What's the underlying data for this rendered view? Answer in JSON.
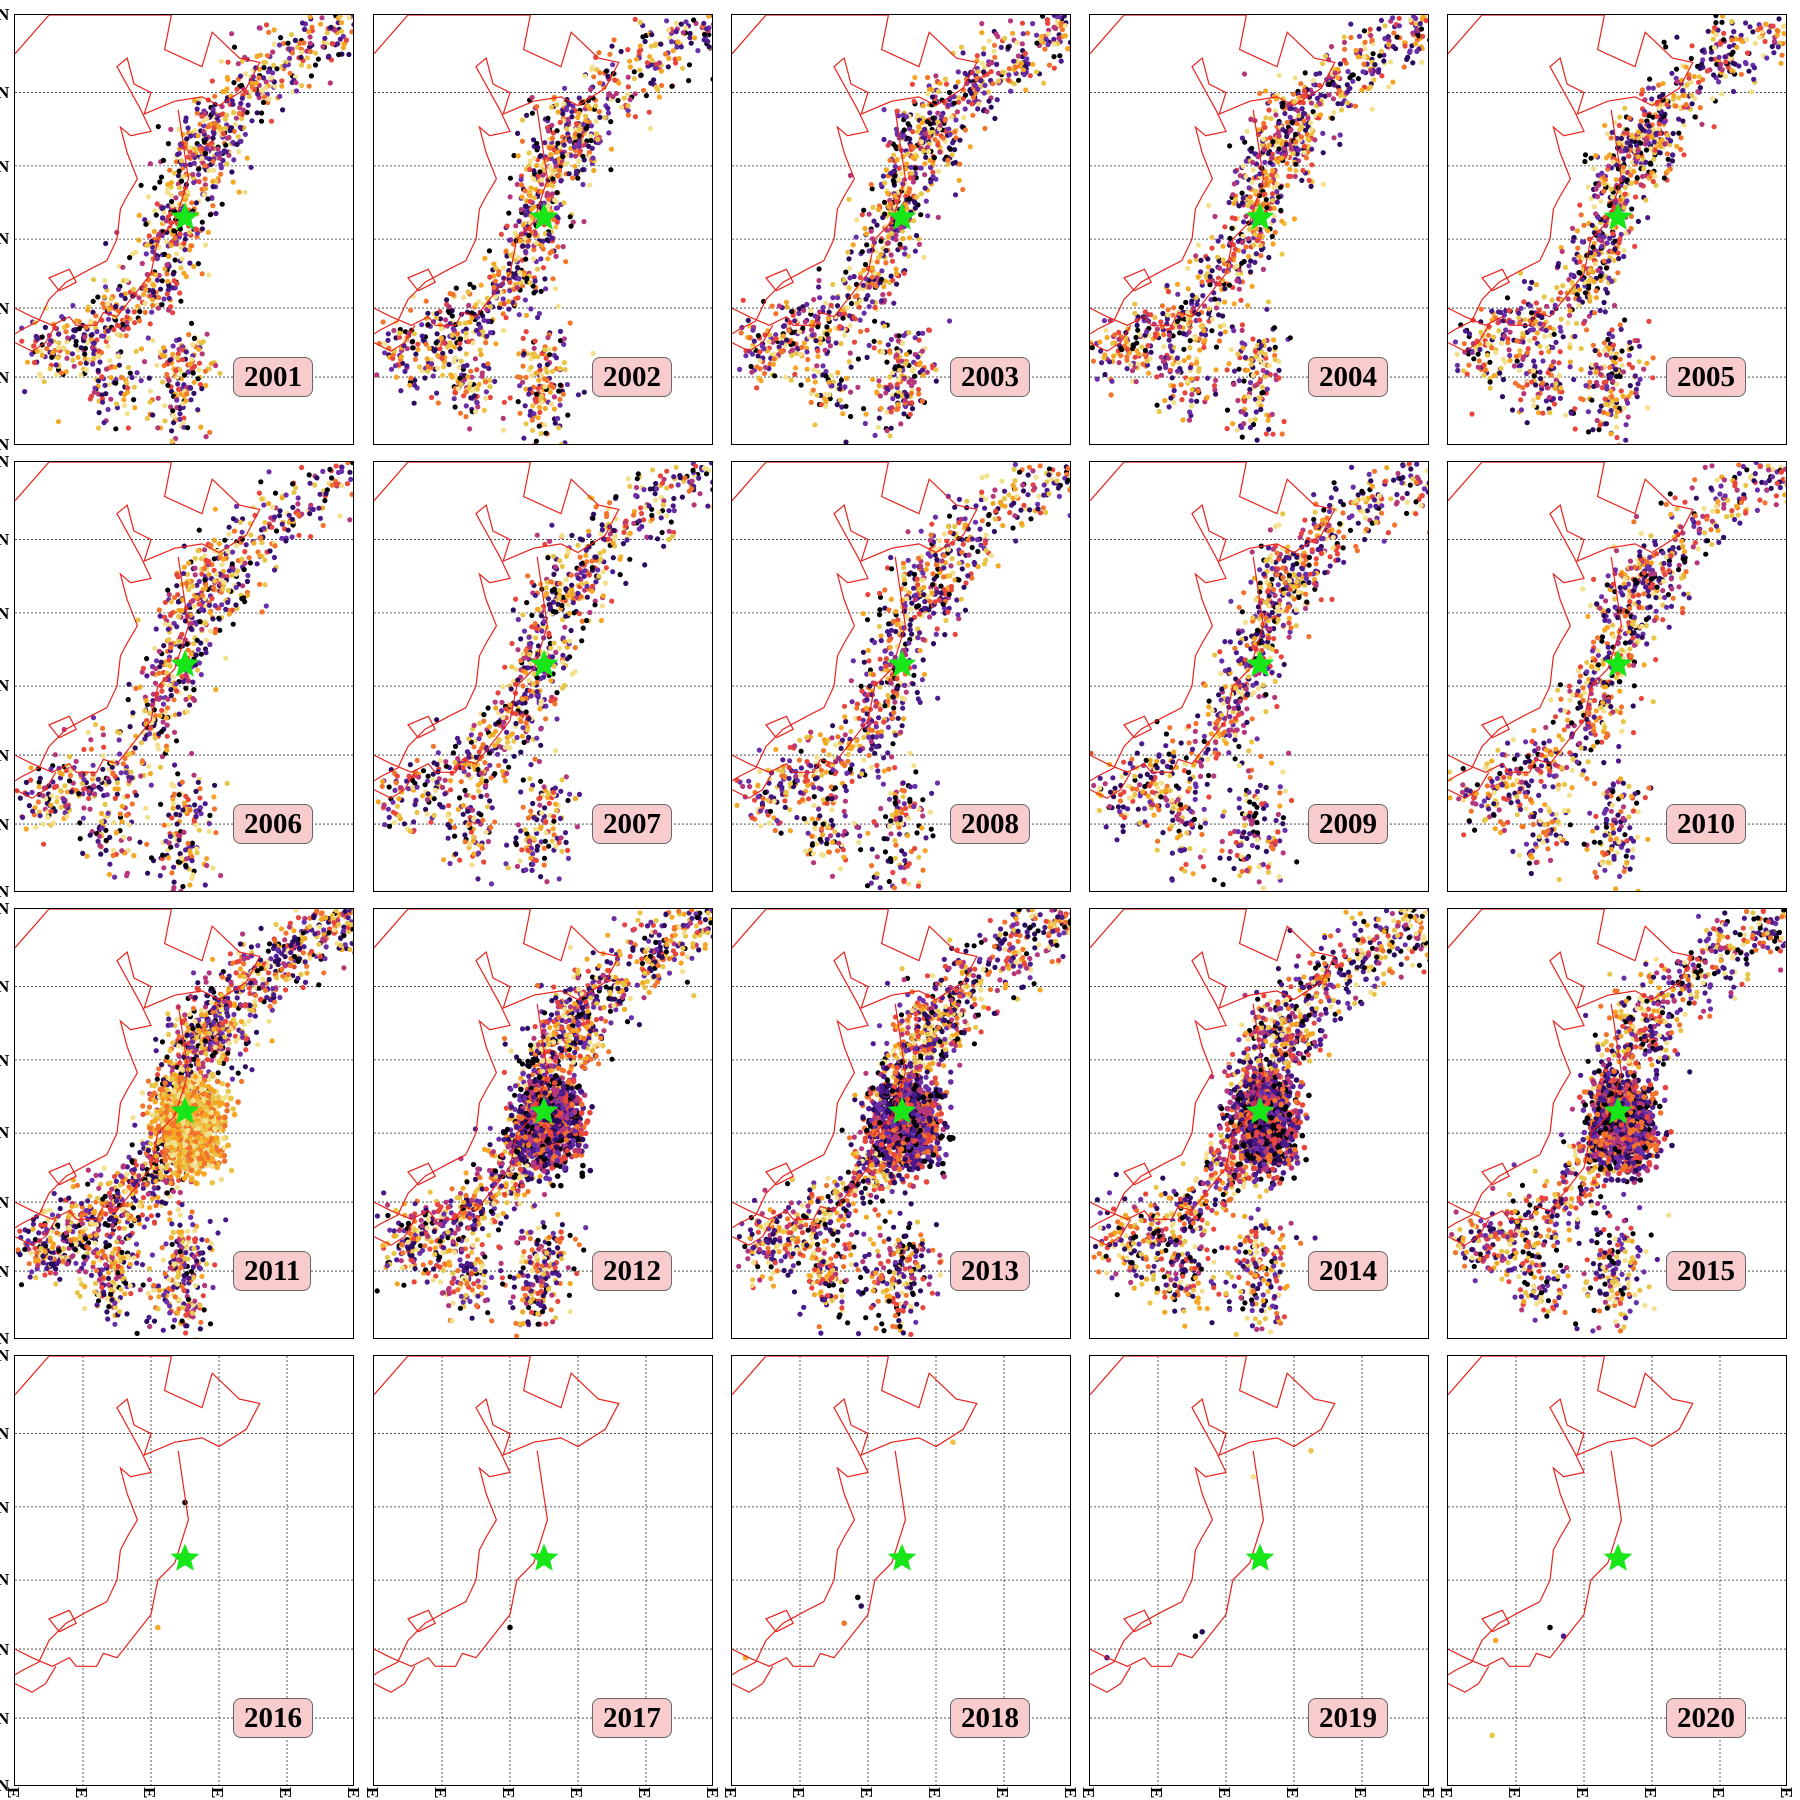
{
  "figure": {
    "columns": 5,
    "rows": 4,
    "lat_tick_label": "N",
    "lon_tick_label": "E",
    "panels": [
      {
        "year": "2001",
        "activity": 1.0
      },
      {
        "year": "2002",
        "activity": 1.0
      },
      {
        "year": "2003",
        "activity": 1.0
      },
      {
        "year": "2004",
        "activity": 1.0
      },
      {
        "year": "2005",
        "activity": 1.0
      },
      {
        "year": "2006",
        "activity": 0.85
      },
      {
        "year": "2007",
        "activity": 0.85
      },
      {
        "year": "2008",
        "activity": 0.85
      },
      {
        "year": "2009",
        "activity": 0.85
      },
      {
        "year": "2010",
        "activity": 0.85
      },
      {
        "year": "2011",
        "activity": 1.6,
        "cluster": "light"
      },
      {
        "year": "2012",
        "activity": 1.4,
        "cluster": "dark"
      },
      {
        "year": "2013",
        "activity": 1.3,
        "cluster": "dark"
      },
      {
        "year": "2014",
        "activity": 1.2,
        "cluster": "dark"
      },
      {
        "year": "2015",
        "activity": 1.0,
        "cluster": "dark"
      },
      {
        "year": "2016",
        "activity": 0
      },
      {
        "year": "2017",
        "activity": 0
      },
      {
        "year": "2018",
        "activity": 0
      },
      {
        "year": "2019",
        "activity": 0
      },
      {
        "year": "2020",
        "activity": 0
      }
    ]
  },
  "colors": {
    "coastline": "#e8221c",
    "epicenter_star": "#19e619",
    "badge_background": "#f8cccc",
    "grid": "#333333",
    "point_palette": [
      "#000004",
      "#2b0b5e",
      "#4a1a8c",
      "#6a2fa8",
      "#b5367a",
      "#e8453c",
      "#f2742a",
      "#f5a623",
      "#e8c547",
      "#f2e08c"
    ]
  },
  "sparse_points": {
    "2016": [
      [
        0.5,
        0.34,
        0
      ],
      [
        0.42,
        0.63,
        7
      ]
    ],
    "2017": [
      [
        0.4,
        0.63,
        0
      ]
    ],
    "2018": [
      [
        0.65,
        0.2,
        8
      ],
      [
        0.37,
        0.56,
        0
      ],
      [
        0.38,
        0.58,
        1
      ],
      [
        0.33,
        0.62,
        6
      ],
      [
        0.04,
        0.7,
        7
      ]
    ],
    "2019": [
      [
        0.65,
        0.22,
        8
      ],
      [
        0.48,
        0.28,
        9
      ],
      [
        0.33,
        0.64,
        1
      ],
      [
        0.31,
        0.65,
        0
      ],
      [
        0.05,
        0.7,
        2
      ]
    ],
    "2020": [
      [
        0.3,
        0.63,
        0
      ],
      [
        0.34,
        0.65,
        2
      ],
      [
        0.14,
        0.66,
        7
      ],
      [
        0.13,
        0.88,
        8
      ]
    ]
  }
}
